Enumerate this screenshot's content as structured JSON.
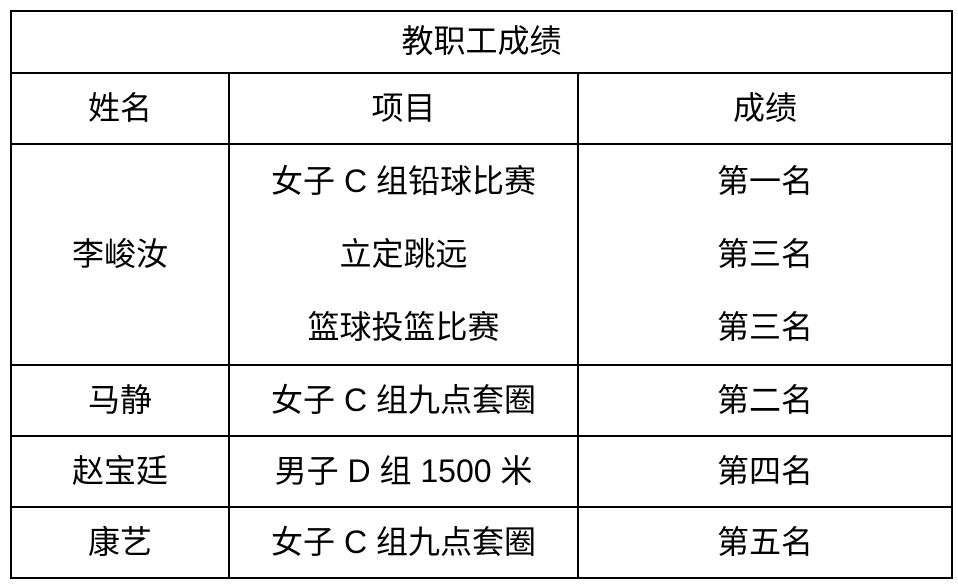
{
  "table": {
    "title": "教职工成绩",
    "columns": [
      "姓名",
      "项目",
      "成绩"
    ],
    "groups": [
      {
        "name": "李峻汝",
        "entries": [
          {
            "event": "女子 C 组铅球比赛",
            "rank": "第一名"
          },
          {
            "event": "立定跳远",
            "rank": "第三名"
          },
          {
            "event": "篮球投篮比赛",
            "rank": "第三名"
          }
        ]
      },
      {
        "name": "马静",
        "entries": [
          {
            "event": "女子 C 组九点套圈",
            "rank": "第二名"
          }
        ]
      },
      {
        "name": "赵宝廷",
        "entries": [
          {
            "event": "男子 D 组 1500 米",
            "rank": "第四名"
          }
        ]
      },
      {
        "name": "康艺",
        "entries": [
          {
            "event": "女子 C 组九点套圈",
            "rank": "第五名"
          }
        ]
      }
    ],
    "colors": {
      "border": "#000000",
      "text": "#000000",
      "background": "#ffffff"
    }
  }
}
